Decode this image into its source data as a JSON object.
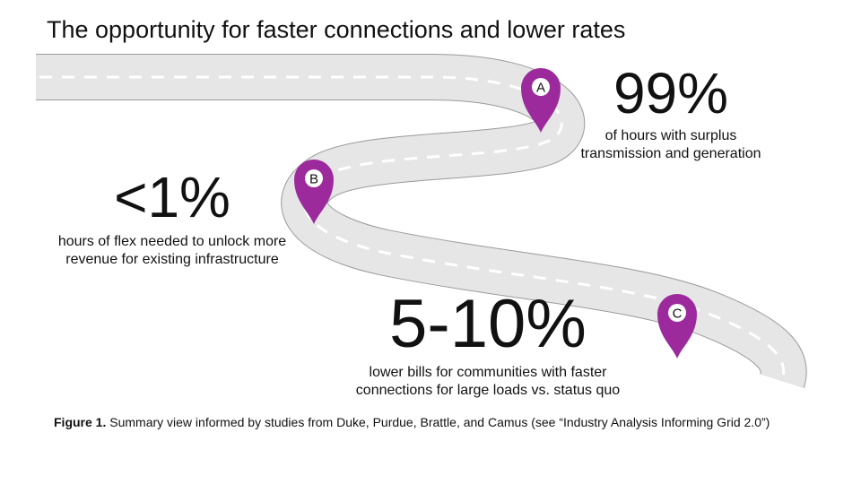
{
  "title": "The opportunity for faster connections and lower rates",
  "colors": {
    "road": "#e6e6e6",
    "road_edge": "#9a9a9a",
    "dash": "#ffffff",
    "pin": "#9c2a9c",
    "pin_label_bg": "#ffffff"
  },
  "markers": [
    {
      "id": "A",
      "label": "A"
    },
    {
      "id": "B",
      "label": "B"
    },
    {
      "id": "C",
      "label": "C"
    }
  ],
  "stats": {
    "a": {
      "value": "99%",
      "description_line1": "of hours with surplus",
      "description_line2": "transmission and generation"
    },
    "b": {
      "value": "<1%",
      "description_line1": "hours of flex needed to unlock more",
      "description_line2": "revenue for existing infrastructure"
    },
    "c": {
      "value": "5-10%",
      "description_line1": "lower bills for communities with faster",
      "description_line2": "connections for large loads vs. status quo"
    }
  },
  "caption": {
    "label": "Figure 1.",
    "text": " Summary view informed by studies from Duke, Purdue, Brattle, and Camus (see “Industry Analysis Informing Grid 2.0”)"
  }
}
